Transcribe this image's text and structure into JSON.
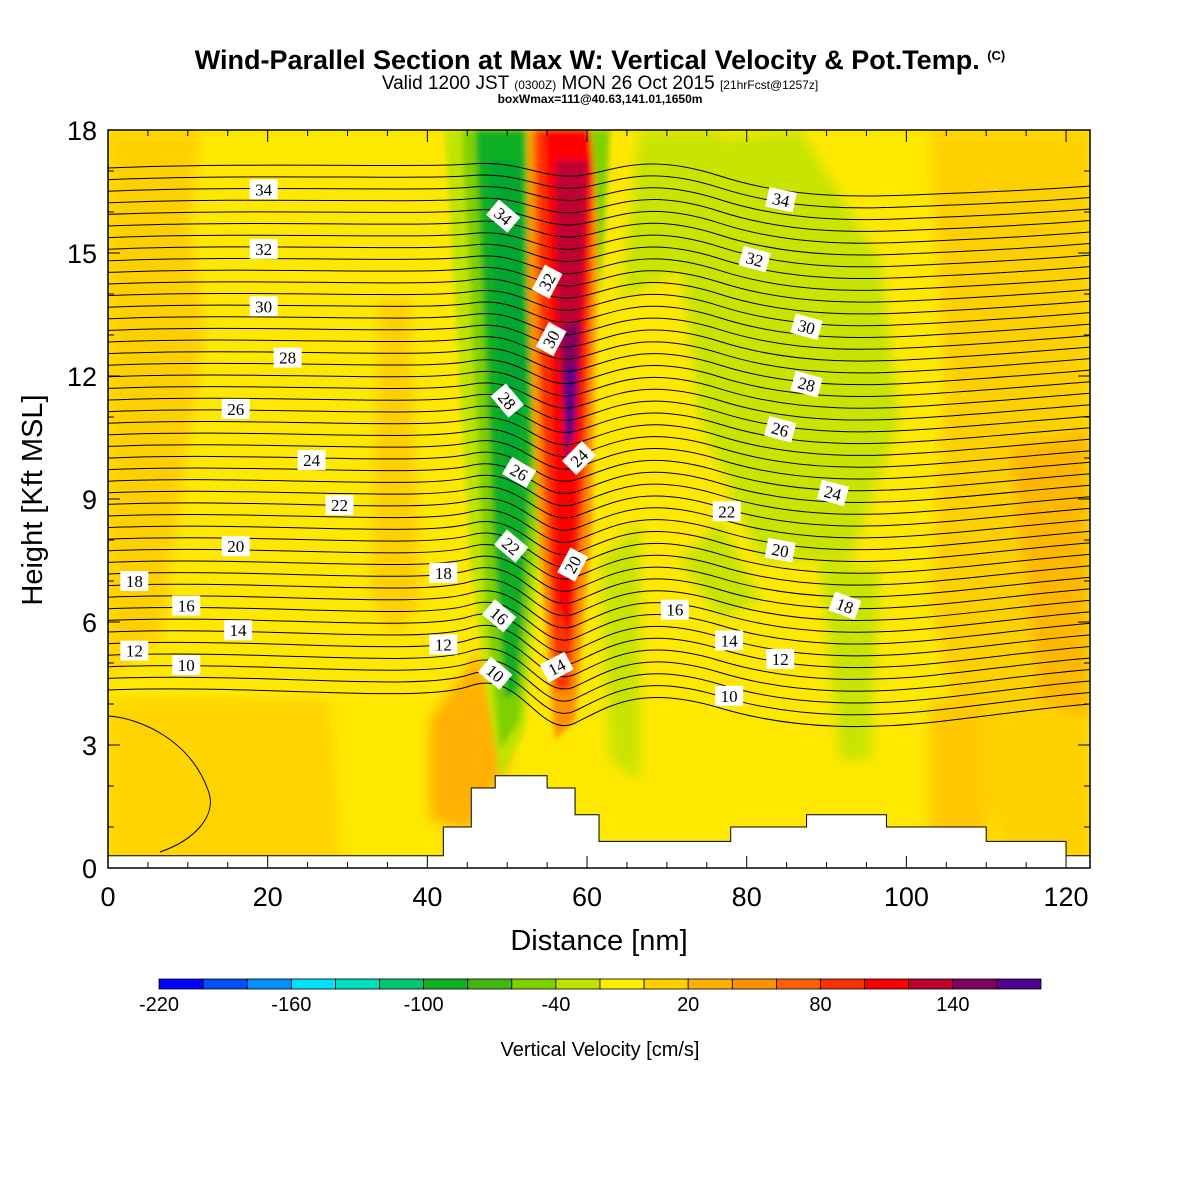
{
  "title": {
    "main": "Wind-Parallel Section at Max W: Vertical Velocity & Pot.Temp.",
    "copyright": "(C)",
    "valid_prefix": "Valid 1200 JST",
    "zulu": "(0300Z)",
    "valid_date": "MON 26 Oct 2015",
    "forecast": "[21hrFcst@1257z]",
    "box_info": "boxWmax=111@40.63,141.01,1650m"
  },
  "chart_data": {
    "type": "heatmap",
    "xlabel": "Distance [nm]",
    "ylabel": "Height [Kft MSL]",
    "xlim": [
      0,
      123
    ],
    "ylim": [
      0,
      18
    ],
    "x_ticks": [
      0,
      20,
      40,
      60,
      80,
      100,
      120
    ],
    "y_ticks": [
      0,
      3,
      6,
      9,
      12,
      15,
      18
    ],
    "colorbar": {
      "label": "Vertical Velocity [cm/s]",
      "tick_labels": [
        "-220",
        "-160",
        "-100",
        "-40",
        "20",
        "80",
        "140"
      ],
      "colors": [
        "#0000ff",
        "#0050ff",
        "#0090ff",
        "#00e0ff",
        "#00e0c0",
        "#00c870",
        "#10b020",
        "#40b810",
        "#80d000",
        "#c0e400",
        "#ffee00",
        "#ffd000",
        "#ffb000",
        "#ff9000",
        "#ff6000",
        "#ff3000",
        "#ff0000",
        "#c00030",
        "#800060",
        "#500090"
      ]
    },
    "terrain_kft": [
      {
        "x": [
          0,
          42
        ],
        "top": 0.3
      },
      {
        "x": [
          42,
          45.5
        ],
        "top": 1.0
      },
      {
        "x": [
          45.5,
          48.5
        ],
        "top": 1.95
      },
      {
        "x": [
          48.5,
          55
        ],
        "top": 2.25
      },
      {
        "x": [
          55,
          58.5
        ],
        "top": 1.95
      },
      {
        "x": [
          58.5,
          61.5
        ],
        "top": 1.3
      },
      {
        "x": [
          61.5,
          78
        ],
        "top": 0.65
      },
      {
        "x": [
          78,
          87.5
        ],
        "top": 1.0
      },
      {
        "x": [
          87.5,
          97.5
        ],
        "top": 1.3
      },
      {
        "x": [
          97.5,
          110
        ],
        "top": 1.0
      },
      {
        "x": [
          110,
          120
        ],
        "top": 0.65
      },
      {
        "x": [
          120,
          123
        ],
        "top": 0.3
      }
    ],
    "contour_labels": [
      {
        "text": "34",
        "x": 19.5,
        "y": 16.55,
        "rot": 0
      },
      {
        "text": "32",
        "x": 19.5,
        "y": 15.1,
        "rot": 0
      },
      {
        "text": "30",
        "x": 19.5,
        "y": 13.7,
        "rot": 0
      },
      {
        "text": "28",
        "x": 22.5,
        "y": 12.45,
        "rot": 0
      },
      {
        "text": "26",
        "x": 16.0,
        "y": 11.2,
        "rot": 0
      },
      {
        "text": "24",
        "x": 25.5,
        "y": 9.95,
        "rot": 0
      },
      {
        "text": "22",
        "x": 29.0,
        "y": 8.85,
        "rot": 0
      },
      {
        "text": "20",
        "x": 16.0,
        "y": 7.85,
        "rot": 0
      },
      {
        "text": "18",
        "x": 3.3,
        "y": 7.0,
        "rot": 0
      },
      {
        "text": "16",
        "x": 9.8,
        "y": 6.4,
        "rot": 0
      },
      {
        "text": "14",
        "x": 16.3,
        "y": 5.8,
        "rot": 0
      },
      {
        "text": "12",
        "x": 3.3,
        "y": 5.3,
        "rot": 0
      },
      {
        "text": "10",
        "x": 9.8,
        "y": 4.95,
        "rot": 0
      },
      {
        "text": "18",
        "x": 42.0,
        "y": 7.2,
        "rot": 0
      },
      {
        "text": "12",
        "x": 42.0,
        "y": 5.45,
        "rot": 0
      },
      {
        "text": "34",
        "x": 49.5,
        "y": 15.9,
        "rot": 40
      },
      {
        "text": "28",
        "x": 50.0,
        "y": 11.4,
        "rot": 50
      },
      {
        "text": "26",
        "x": 51.5,
        "y": 9.65,
        "rot": 30
      },
      {
        "text": "22",
        "x": 50.5,
        "y": 7.85,
        "rot": 40
      },
      {
        "text": "16",
        "x": 49.0,
        "y": 6.15,
        "rot": 40
      },
      {
        "text": "10",
        "x": 48.5,
        "y": 4.75,
        "rot": 40
      },
      {
        "text": "32",
        "x": 55.0,
        "y": 14.3,
        "rot": -62
      },
      {
        "text": "30",
        "x": 55.5,
        "y": 12.9,
        "rot": -62
      },
      {
        "text": "24",
        "x": 59.0,
        "y": 10.0,
        "rot": -45
      },
      {
        "text": "20",
        "x": 58.2,
        "y": 7.4,
        "rot": -62
      },
      {
        "text": "14",
        "x": 56.2,
        "y": 4.9,
        "rot": -28
      },
      {
        "text": "34",
        "x": 84.3,
        "y": 16.3,
        "rot": 12
      },
      {
        "text": "32",
        "x": 81.0,
        "y": 14.85,
        "rot": 15
      },
      {
        "text": "30",
        "x": 87.5,
        "y": 13.2,
        "rot": 15
      },
      {
        "text": "28",
        "x": 87.5,
        "y": 11.8,
        "rot": 15
      },
      {
        "text": "26",
        "x": 84.2,
        "y": 10.7,
        "rot": 15
      },
      {
        "text": "24",
        "x": 90.8,
        "y": 9.15,
        "rot": 15
      },
      {
        "text": "22",
        "x": 77.5,
        "y": 8.7,
        "rot": 0
      },
      {
        "text": "20",
        "x": 84.2,
        "y": 7.75,
        "rot": 10
      },
      {
        "text": "18",
        "x": 92.3,
        "y": 6.4,
        "rot": 20
      },
      {
        "text": "16",
        "x": 71.0,
        "y": 6.3,
        "rot": 0
      },
      {
        "text": "14",
        "x": 77.8,
        "y": 5.55,
        "rot": 0
      },
      {
        "text": "12",
        "x": 84.2,
        "y": 5.1,
        "rot": 0
      },
      {
        "text": "10",
        "x": 77.8,
        "y": 4.2,
        "rot": 0
      }
    ]
  }
}
